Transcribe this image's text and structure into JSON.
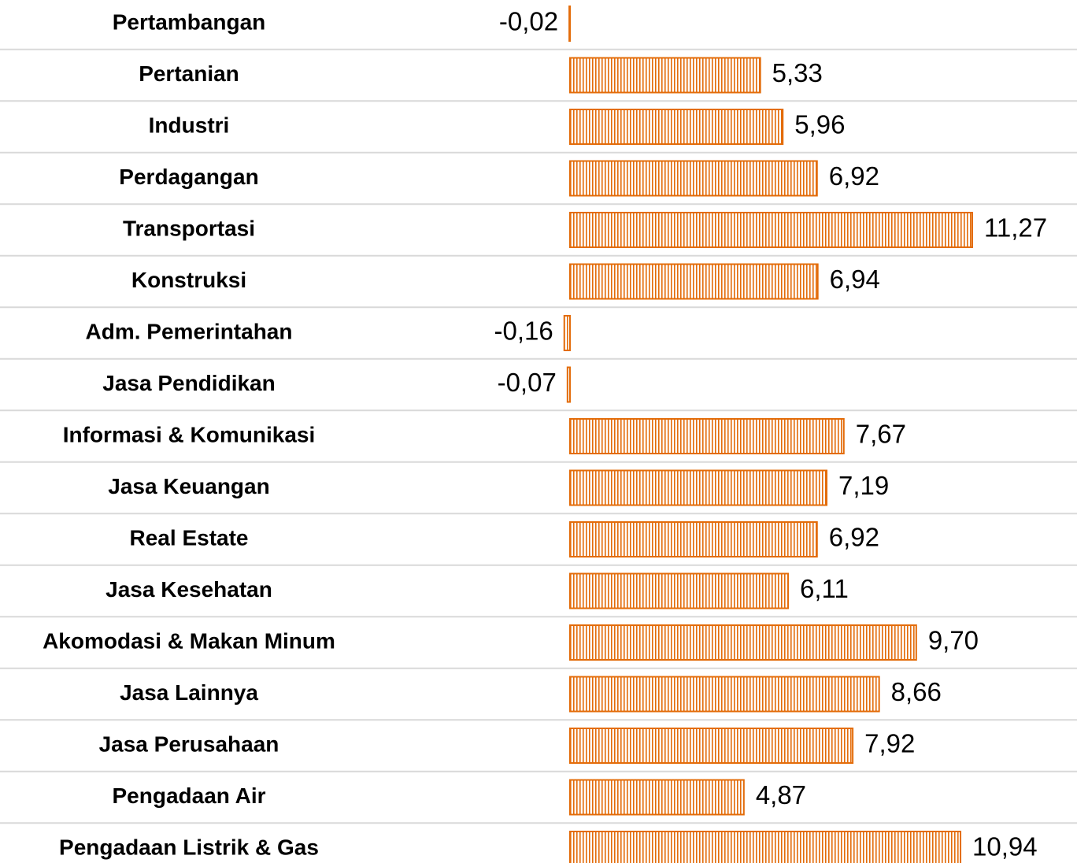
{
  "chart_data": {
    "type": "bar",
    "orientation": "horizontal",
    "categories": [
      "Pertambangan",
      "Pertanian",
      "Industri",
      "Perdagangan",
      "Transportasi",
      "Konstruksi",
      "Adm. Pemerintahan",
      "Jasa Pendidikan",
      "Informasi & Komunikasi",
      "Jasa Keuangan",
      "Real Estate",
      "Jasa Kesehatan",
      "Akomodasi & Makan Minum",
      "Jasa Lainnya",
      "Jasa Perusahaan",
      "Pengadaan Air",
      "Pengadaan Listrik & Gas"
    ],
    "values": [
      -0.02,
      5.33,
      5.96,
      6.92,
      11.27,
      6.94,
      -0.16,
      -0.07,
      7.67,
      7.19,
      6.92,
      6.11,
      9.7,
      8.66,
      7.92,
      4.87,
      10.94
    ],
    "value_labels": [
      "-0,02",
      "5,33",
      "5,96",
      "6,92",
      "11,27",
      "6,94",
      "-0,16",
      "-0,07",
      "7,67",
      "7,19",
      "6,92",
      "6,11",
      "9,70",
      "8,66",
      "7,92",
      "4,87",
      "10,94"
    ],
    "color": "#E36C0A"
  }
}
